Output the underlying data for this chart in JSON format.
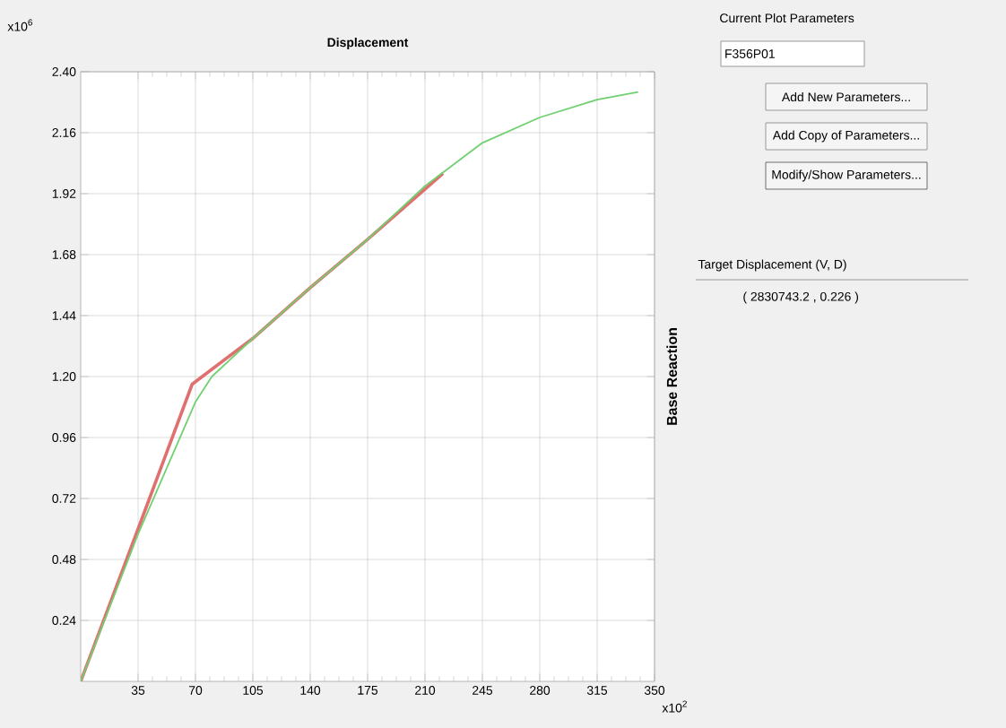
{
  "chart_data": {
    "type": "line",
    "title": "Displacement",
    "ylabel": "Base Reaction",
    "xlim": [
      0,
      350
    ],
    "xticks": [
      35,
      70,
      105,
      140,
      175,
      210,
      245,
      280,
      315,
      350
    ],
    "ylim": [
      0,
      2.4
    ],
    "yticks": [
      0.24,
      0.48,
      0.72,
      0.96,
      {
        "value": 1.2,
        "label": "1.20"
      },
      1.44,
      1.68,
      1.92,
      2.16,
      {
        "value": 2.4,
        "label": "2.40"
      }
    ],
    "grid": true,
    "marker": "none",
    "line_style": "solid",
    "series": [
      {
        "color": "#e07070",
        "x": [
          0,
          35,
          68,
          105,
          140,
          175,
          221
        ],
        "values": [
          0,
          0.6,
          1.17,
          1.35,
          1.55,
          1.74,
          2.0
        ]
      },
      {
        "color": "#70d070",
        "x": [
          0,
          35,
          70,
          80,
          105,
          140,
          175,
          210,
          245,
          280,
          315,
          340
        ],
        "values": [
          0,
          0.58,
          1.1,
          1.2,
          1.35,
          1.55,
          1.74,
          1.95,
          2.12,
          2.22,
          2.29,
          2.32
        ]
      }
    ],
    "annotations": [
      "x10$^{6}$",
      "x10$^{2}$",
      "Current Plot Parameters",
      "F356P01",
      "Add New Parameters...",
      "Add Copy of Parameters...",
      "Modify/Show Parameters...",
      "Target Displacement (V, D)",
      "( 2830743.2 , 0.226 )"
    ]
  }
}
